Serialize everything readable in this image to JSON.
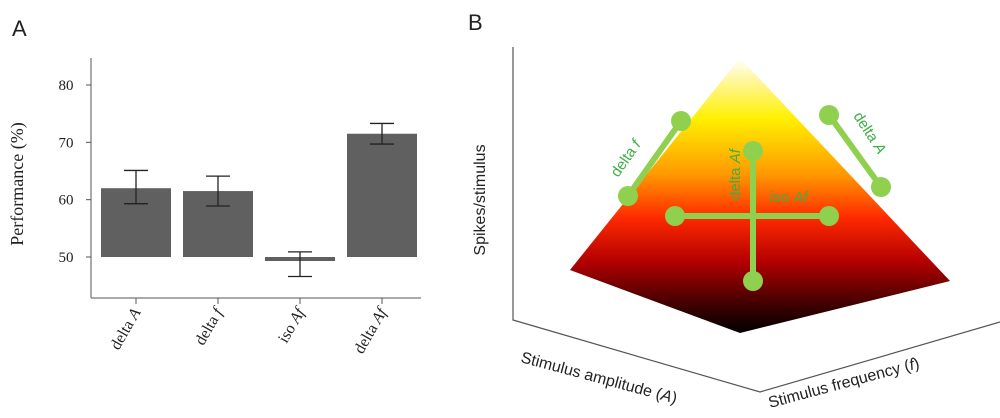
{
  "panels": {
    "a_letter": "A",
    "b_letter": "B"
  },
  "chart_data": [
    {
      "type": "bar",
      "categories": [
        "delta A",
        "delta f",
        "iso Af",
        "delta Af"
      ],
      "category_parts": [
        {
          "plain": "delta ",
          "italic": "A"
        },
        {
          "plain": "delta ",
          "italic": "f"
        },
        {
          "plain": "iso ",
          "italic": "Af"
        },
        {
          "plain": "delta ",
          "italic": "Af"
        }
      ],
      "values": [
        62,
        61.5,
        49.3,
        71.5
      ],
      "error_low": [
        59.3,
        58.9,
        46.6,
        69.7
      ],
      "error_high": [
        65.1,
        64.1,
        50.9,
        73.3
      ],
      "baseline": 50,
      "ylabel": "Performance (%)",
      "xlabel": "",
      "ylim": [
        45,
        80
      ],
      "yticks": [
        50,
        60,
        70,
        80
      ],
      "bar_color": "#606060",
      "grid": false
    },
    {
      "type": "surface",
      "ylabel": "Spikes/stimulus",
      "xlabel_parts": {
        "plain": "Stimulus amplitude (",
        "italic": "A",
        "close": ")"
      },
      "zlabel_parts": {
        "plain": "Stimulus frequency (",
        "italic": "f",
        "close": ")"
      },
      "colormap": [
        "#000000",
        "#b40000",
        "#ff2a00",
        "#ff9a00",
        "#fff000",
        "#ffffff"
      ],
      "overlay_color": "#8fd14f",
      "annotations": {
        "delta_f": {
          "plain": "delta ",
          "italic": "f"
        },
        "delta_A": {
          "plain": "delta ",
          "italic": "A"
        },
        "delta_Af": {
          "plain": "delta ",
          "italic": "Af"
        },
        "iso_Af": {
          "plain": "iso ",
          "italic": "Af"
        }
      }
    }
  ]
}
